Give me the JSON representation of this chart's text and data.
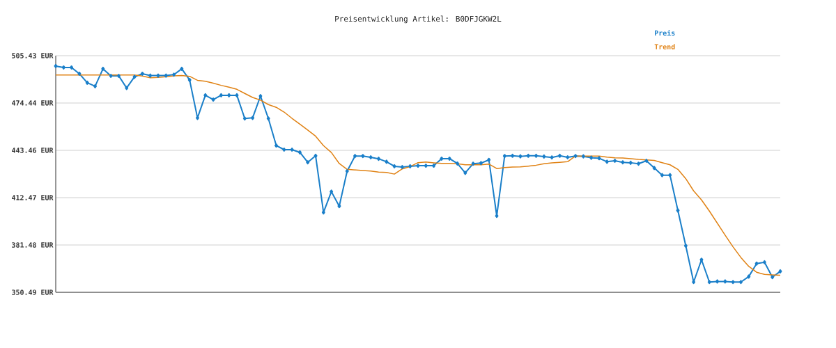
{
  "chart_data": {
    "type": "line",
    "title": "Preisentwicklung Artikel: B0DFJGKW2L",
    "categories": [
      null,
      null,
      null,
      null,
      null,
      null,
      null,
      null,
      null,
      null,
      null,
      null,
      null,
      null,
      null,
      null,
      null,
      null,
      null,
      null,
      null,
      null,
      null,
      null,
      null,
      null,
      null,
      null,
      null,
      null,
      null,
      null,
      null,
      null,
      null,
      null,
      null,
      null,
      null,
      null,
      null,
      null,
      null,
      null,
      null,
      null,
      null,
      null,
      null,
      null,
      null,
      null,
      null,
      null,
      null,
      null,
      null,
      null,
      null,
      null,
      null,
      null,
      null,
      null,
      null,
      null,
      null,
      null,
      null,
      null,
      null,
      null,
      null,
      null,
      null,
      null,
      null,
      null,
      null,
      null,
      null,
      null,
      null,
      null,
      null,
      null,
      null,
      null,
      null,
      null,
      null,
      null,
      null
    ],
    "series": [
      {
        "name": "Preis",
        "color": "#1a7fc9",
        "values": [
          498.6,
          497.7,
          497.7,
          493.6,
          487.7,
          485.4,
          496.8,
          492.2,
          492.2,
          484.3,
          491.6,
          493.6,
          492.4,
          492.4,
          492.4,
          493.0,
          496.8,
          489.5,
          464.7,
          479.5,
          476.7,
          479.5,
          479.5,
          479.5,
          464.3,
          464.7,
          479.0,
          464.3,
          446.6,
          443.9,
          443.9,
          442.1,
          435.6,
          439.9,
          402.8,
          416.4,
          406.9,
          429.8,
          439.7,
          439.7,
          438.9,
          437.9,
          436.0,
          433.0,
          432.5,
          433.0,
          433.4,
          433.4,
          433.4,
          438.0,
          438.0,
          434.8,
          428.7,
          434.7,
          435.1,
          437.2,
          400.5,
          439.7,
          439.9,
          439.5,
          439.9,
          439.9,
          439.4,
          438.8,
          439.9,
          438.9,
          439.7,
          439.5,
          438.6,
          438.3,
          436.0,
          436.6,
          435.6,
          435.3,
          434.7,
          436.6,
          431.9,
          427.2,
          427.2,
          404.1,
          381.0,
          357.2,
          371.8,
          357.2,
          357.6,
          357.6,
          357.2,
          357.2,
          360.8,
          369.3,
          370.2,
          360.4,
          364.2
        ]
      },
      {
        "name": "Trend",
        "color": "#e08214",
        "marker": "none",
        "values": [
          492.8,
          492.8,
          492.8,
          492.8,
          492.8,
          492.8,
          492.8,
          492.8,
          492.8,
          492.8,
          492.8,
          492.1,
          491.0,
          491.2,
          491.6,
          492.2,
          492.4,
          491.9,
          489.3,
          488.7,
          487.4,
          486.0,
          484.8,
          483.4,
          480.7,
          478.1,
          476.3,
          473.4,
          471.6,
          468.5,
          464.4,
          460.6,
          456.7,
          452.7,
          446.5,
          442.0,
          434.8,
          431.0,
          430.6,
          430.2,
          429.9,
          429.2,
          429.0,
          427.9,
          431.3,
          432.8,
          435.4,
          435.8,
          435.3,
          434.9,
          434.9,
          434.7,
          434.0,
          434.0,
          434.0,
          434.5,
          431.5,
          432.2,
          432.5,
          432.6,
          433.1,
          433.7,
          434.7,
          435.3,
          435.6,
          436.0,
          439.7,
          439.7,
          439.7,
          439.7,
          439.0,
          438.6,
          438.4,
          438.0,
          437.5,
          437.2,
          436.8,
          435.4,
          434.0,
          431.0,
          424.9,
          416.9,
          411.0,
          403.7,
          395.8,
          387.9,
          380.3,
          373.3,
          367.5,
          363.6,
          362.2,
          361.9,
          361.6
        ]
      }
    ],
    "ylim": [
      350.49,
      505.43
    ],
    "yticks": [
      {
        "value": 350.49,
        "label": "350.49 EUR"
      },
      {
        "value": 381.48,
        "label": "381.48 EUR"
      },
      {
        "value": 412.47,
        "label": "412.47 EUR"
      },
      {
        "value": 443.46,
        "label": "443.46 EUR"
      },
      {
        "value": 474.44,
        "label": "474.44 EUR"
      },
      {
        "value": 505.43,
        "label": "505.43 EUR"
      }
    ],
    "grid": "y",
    "legend": "top right",
    "marker": "diamond",
    "line_style": "solid"
  }
}
